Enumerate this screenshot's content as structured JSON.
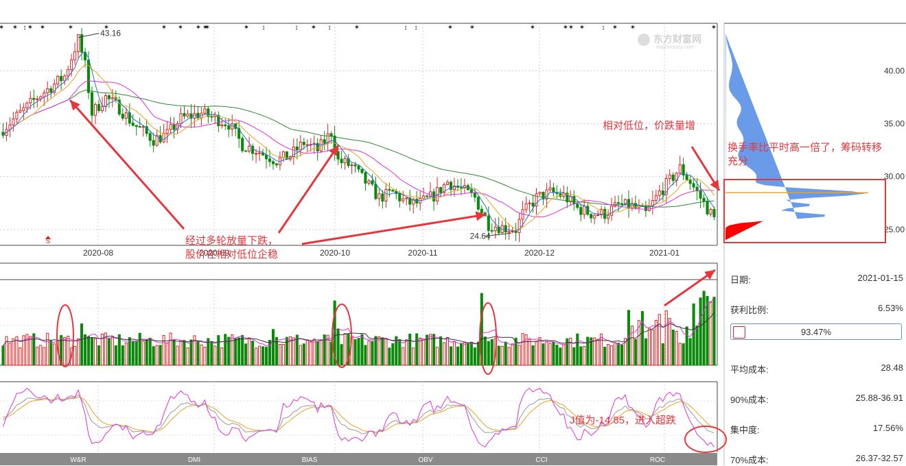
{
  "chart_data": [
    {
      "type": "candlestick",
      "name": "price",
      "x_labels": [
        "2020-08",
        "2020-09",
        "2020-10",
        "2020-11",
        "2020-12",
        "2021-01"
      ],
      "ylim": [
        23.5,
        44.5
      ],
      "y_ticks": [
        "40.00",
        "35.00",
        "30.00",
        "25.00"
      ],
      "y_tick_values": [
        40,
        35,
        30,
        25
      ],
      "annotations": {
        "high": "43.16",
        "low": "24.64",
        "s_marker": "S"
      },
      "candles": []
    },
    {
      "type": "bar",
      "name": "volume"
    },
    {
      "type": "line",
      "name": "kdj",
      "x_labels": [
        "W&R",
        "DMI",
        "BIAS",
        "OBV",
        "CCI",
        "ROC"
      ]
    }
  ],
  "annotations": {
    "ann1_line1": "经过多轮放量下跌，",
    "ann1_line2": "股价在相对低位企稳",
    "ann2": "相对低位，价跌量增",
    "ann3_line1": "换手率比平时高一倍了，筹码转移",
    "ann3_line2": "充分",
    "ann4": "J值为-14.85，进入超跌"
  },
  "watermark": {
    "cn": "东方财富网",
    "en": "eastmoney.com"
  },
  "chip_panel": {
    "date_label": "日期:",
    "date_value": "2021-01-15",
    "profit_label": "获利比例:",
    "profit_value": "6.53%",
    "profit_fraction": 0.0653,
    "bar_text": "93.47%",
    "avg_label": "平均成本:",
    "avg_value": "28.48",
    "c90_label": "90%成本:",
    "c90_value": "25.88-36.91",
    "conc_label": "集中度:",
    "conc_value": "17.56%",
    "c70_label": "70%成本:",
    "c70_value": "26.37-32.57"
  },
  "colors": {
    "up": "#e02020",
    "down": "#0a8a0a",
    "ma5": "#2a6fd6",
    "ma10": "#f0a020",
    "ma20": "#e030e0",
    "ma60": "#2a8a2a",
    "chip_blue": "#6a9be8",
    "chip_red": "#ff0000",
    "annotation": "#e8353a"
  }
}
